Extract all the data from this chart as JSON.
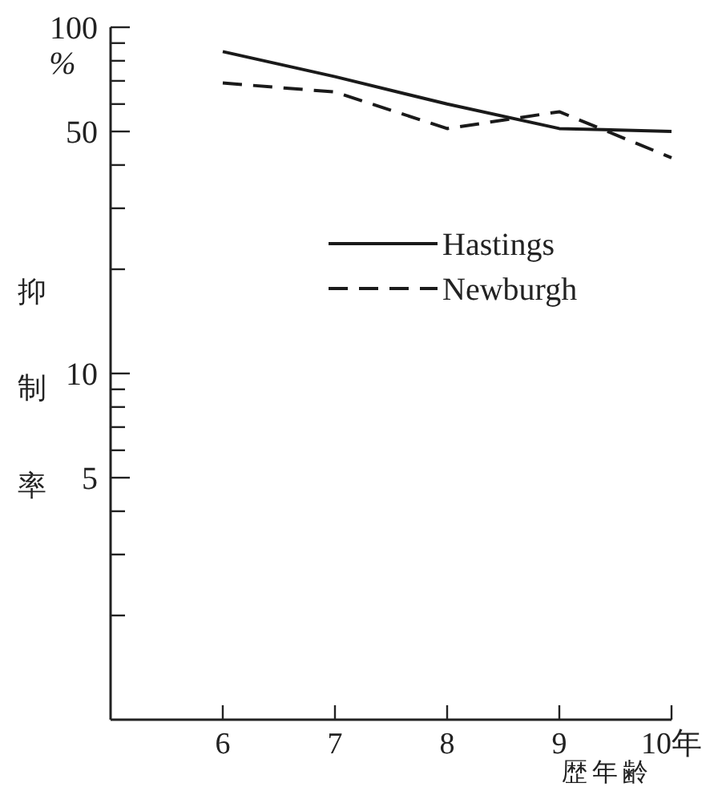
{
  "chart_data": {
    "type": "line",
    "xlabel": "歴年齢",
    "ylabel": "抑制率",
    "annotations": [
      "%"
    ],
    "x": [
      6,
      7,
      8,
      9,
      10
    ],
    "xlim": [
      5,
      10
    ],
    "xticks": [
      6,
      7,
      8,
      9,
      {
        "value": 10,
        "label": "10年"
      }
    ],
    "ylim": [
      1,
      100
    ],
    "log": "y",
    "yticks": [
      {
        "value": 2,
        "label": null
      },
      {
        "value": 3,
        "label": null
      },
      {
        "value": 4,
        "label": null
      },
      5,
      {
        "value": 6,
        "label": null
      },
      {
        "value": 7,
        "label": null
      },
      {
        "value": 8,
        "label": null
      },
      {
        "value": 9,
        "label": null
      },
      10,
      {
        "value": 20,
        "label": null
      },
      {
        "value": 30,
        "label": null
      },
      {
        "value": 40,
        "label": null
      },
      50,
      {
        "value": 60,
        "label": null
      },
      {
        "value": 70,
        "label": null
      },
      {
        "value": 80,
        "label": null
      },
      {
        "value": 90,
        "label": null
      },
      100
    ],
    "legend": "right",
    "grid": false,
    "series": [
      {
        "name": "Hastings",
        "color": "#1a1a1a",
        "line_style": "solid",
        "values": [
          85,
          72,
          60,
          51,
          50
        ]
      },
      {
        "name": "Newburgh",
        "color": "#1a1a1a",
        "line_style": "dashed",
        "values": [
          69,
          65,
          51,
          57,
          42
        ]
      }
    ]
  }
}
